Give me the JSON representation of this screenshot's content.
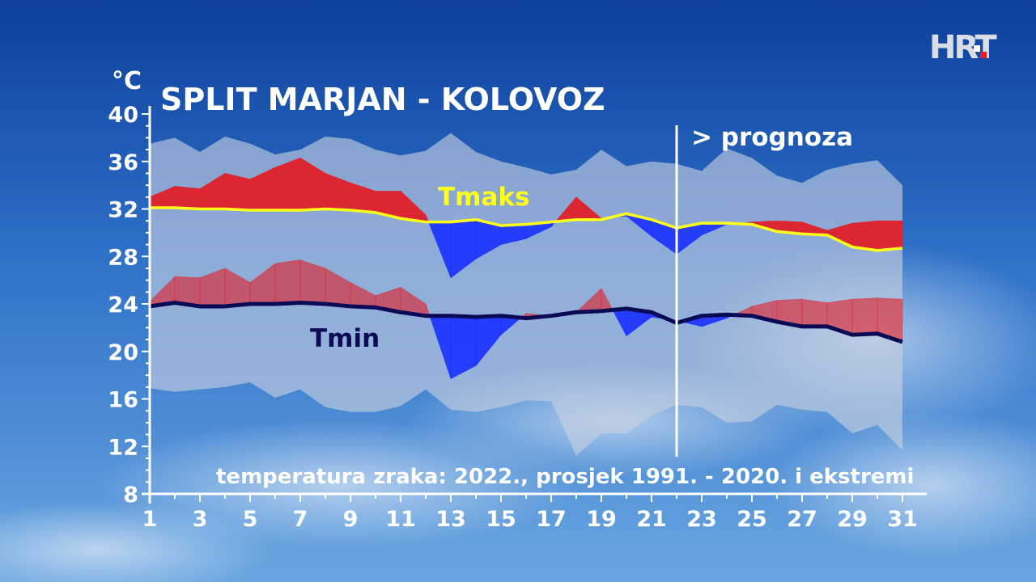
{
  "logo": {
    "text": "HRT"
  },
  "colors": {
    "tmax_line": "#ffff1a",
    "tmin_line": "#0a0a55",
    "above": "#e0202a",
    "below": "#1a30ff",
    "range_band": "#c8d0e0",
    "axis": "#ffffff"
  },
  "chart_data": {
    "type": "line",
    "title": "SPLIT MARJAN - KOLOVOZ",
    "ylabel": "°C",
    "subtitle": "temperatura zraka: 2022., prosjek 1991. - 2020. i ekstremi",
    "forecast_label": "> prognoza",
    "forecast_from_day": 22,
    "ylim": [
      8,
      40
    ],
    "yticks": [
      8,
      12,
      16,
      20,
      24,
      28,
      32,
      36,
      40
    ],
    "xlim": [
      1,
      31
    ],
    "xticks": [
      1,
      3,
      5,
      7,
      9,
      11,
      13,
      15,
      17,
      19,
      21,
      23,
      25,
      27,
      29,
      31
    ],
    "x": [
      1,
      2,
      3,
      4,
      5,
      6,
      7,
      8,
      9,
      10,
      11,
      12,
      13,
      14,
      15,
      16,
      17,
      18,
      19,
      20,
      21,
      22,
      23,
      24,
      25,
      26,
      27,
      28,
      29,
      30,
      31
    ],
    "series": [
      {
        "name": "Tmaks",
        "role": "mean_max",
        "values": [
          32.1,
          32.1,
          32.0,
          32.0,
          31.9,
          31.9,
          31.9,
          32.0,
          31.9,
          31.7,
          31.2,
          30.9,
          30.9,
          31.1,
          30.6,
          30.7,
          30.9,
          31.1,
          31.1,
          31.6,
          31.1,
          30.4,
          30.8,
          30.8,
          30.7,
          30.1,
          29.9,
          29.8,
          28.8,
          28.5,
          28.7
        ]
      },
      {
        "name": "Tmin",
        "role": "mean_min",
        "values": [
          23.8,
          24.1,
          23.8,
          23.8,
          24.0,
          24.0,
          24.1,
          24.0,
          23.8,
          23.7,
          23.3,
          23.0,
          23.0,
          22.9,
          23.0,
          22.8,
          23.0,
          23.3,
          23.4,
          23.6,
          23.3,
          22.4,
          23.0,
          23.1,
          23.0,
          22.5,
          22.1,
          22.1,
          21.4,
          21.5,
          20.8
        ]
      },
      {
        "role": "tmax_2022",
        "values": [
          33.0,
          33.9,
          33.7,
          35.0,
          34.5,
          35.5,
          36.3,
          35.0,
          34.2,
          33.5,
          33.5,
          31.5,
          26.2,
          27.8,
          29.0,
          29.5,
          30.5,
          33.0,
          31.2,
          31.4,
          29.7,
          28.2,
          29.8,
          30.7,
          30.9,
          31.0,
          30.9,
          30.2,
          30.8,
          31.0,
          31.0
        ]
      },
      {
        "role": "tmin_2022",
        "values": [
          24.2,
          26.3,
          26.2,
          27.0,
          25.8,
          27.4,
          27.7,
          27.0,
          25.8,
          24.7,
          25.4,
          24.0,
          17.7,
          18.8,
          21.4,
          23.2,
          23.0,
          23.3,
          25.3,
          21.3,
          22.9,
          22.6,
          22.1,
          22.8,
          23.8,
          24.3,
          24.4,
          24.1,
          24.4,
          24.5,
          24.4
        ]
      },
      {
        "role": "record_max",
        "values": [
          37.5,
          38.0,
          36.8,
          38.1,
          37.5,
          36.6,
          37.0,
          38.1,
          37.9,
          37.0,
          36.5,
          36.9,
          38.4,
          36.8,
          36.0,
          35.5,
          34.9,
          35.3,
          37.0,
          35.6,
          36.0,
          35.8,
          35.2,
          37.1,
          36.3,
          34.8,
          34.2,
          35.3,
          35.8,
          36.1,
          34.0
        ]
      },
      {
        "role": "record_min",
        "values": [
          16.9,
          16.6,
          16.8,
          17.0,
          17.4,
          16.1,
          16.8,
          15.3,
          14.9,
          14.9,
          15.4,
          16.8,
          15.1,
          14.9,
          15.3,
          15.9,
          15.8,
          11.2,
          13.1,
          13.1,
          14.6,
          15.5,
          15.3,
          14.0,
          14.1,
          15.5,
          15.1,
          14.9,
          13.1,
          13.8,
          11.7
        ]
      }
    ]
  }
}
